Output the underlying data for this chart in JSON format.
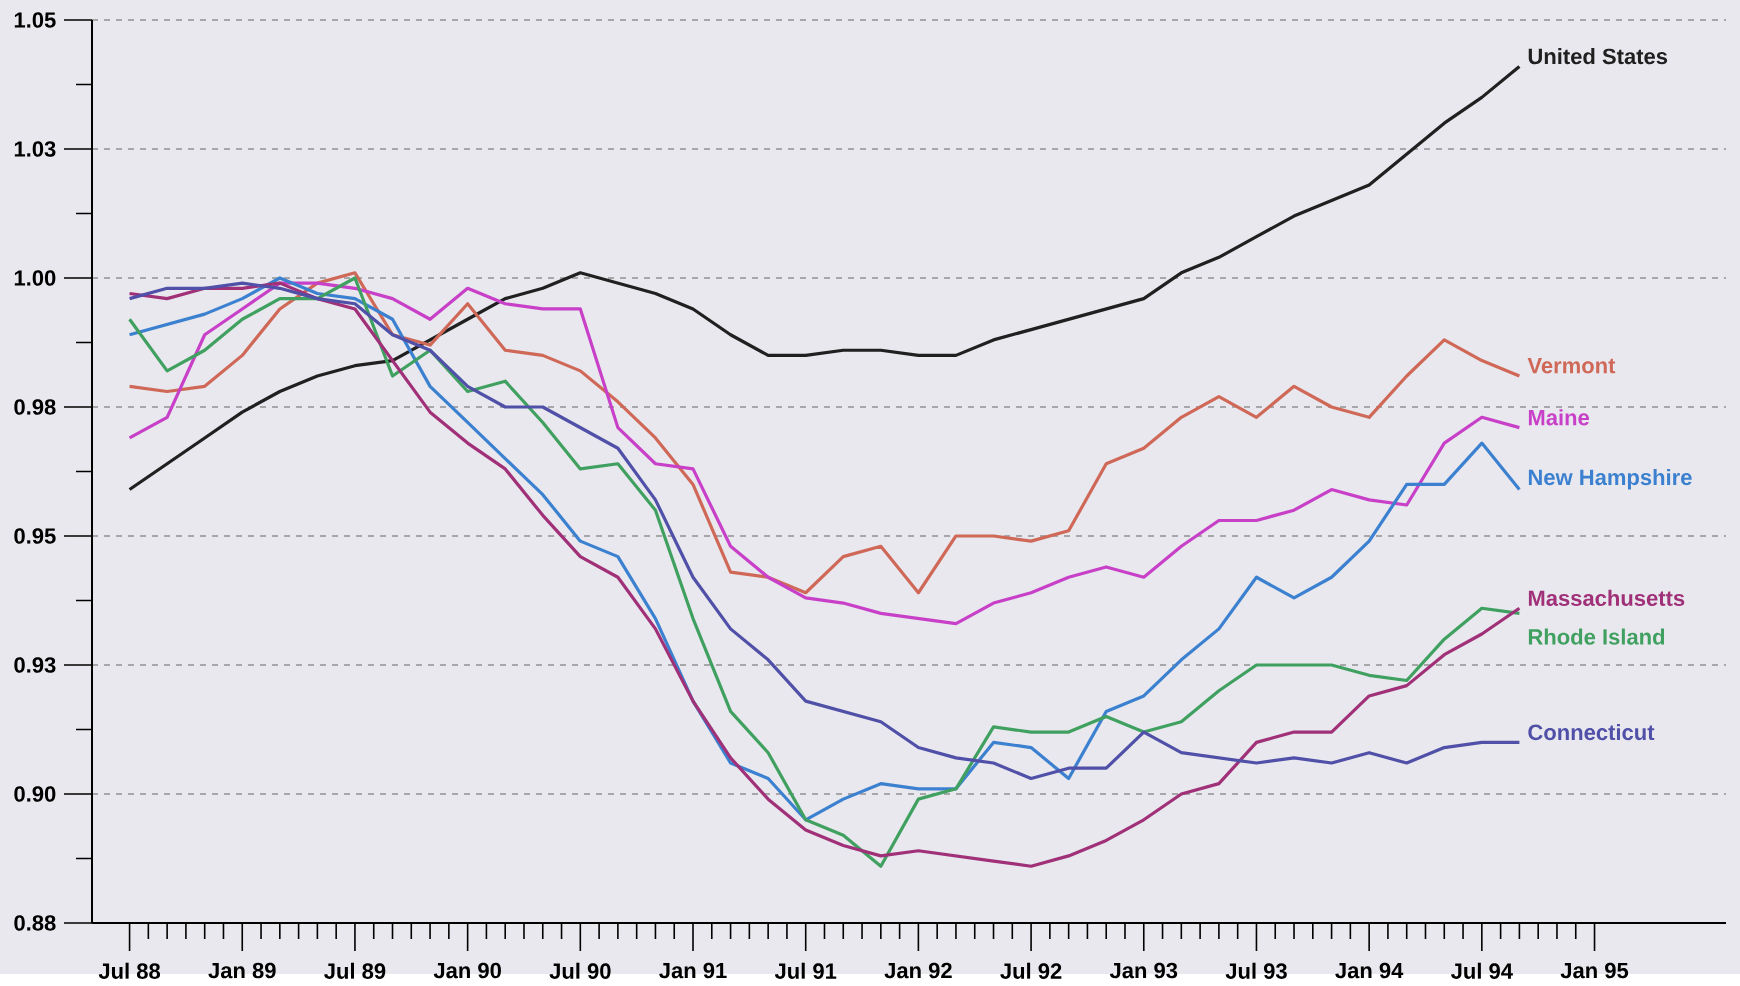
{
  "chart_data": {
    "type": "line",
    "x": [
      "1988-07",
      "1988-09",
      "1988-11",
      "1989-01",
      "1989-03",
      "1989-05",
      "1989-07",
      "1989-09",
      "1989-11",
      "1990-01",
      "1990-03",
      "1990-05",
      "1990-07",
      "1990-09",
      "1990-11",
      "1991-01",
      "1991-03",
      "1991-05",
      "1991-07",
      "1991-09",
      "1991-11",
      "1992-01",
      "1992-03",
      "1992-05",
      "1992-07",
      "1992-09",
      "1992-11",
      "1993-01",
      "1993-03",
      "1993-05",
      "1993-07",
      "1993-09",
      "1993-11",
      "1994-01",
      "1994-03",
      "1994-05",
      "1994-07",
      "1994-09"
    ],
    "series": [
      {
        "name": "United States",
        "color": "#202020",
        "values": [
          0.959,
          0.964,
          0.969,
          0.974,
          0.978,
          0.981,
          0.983,
          0.984,
          0.988,
          0.992,
          0.996,
          0.998,
          1.001,
          0.999,
          0.997,
          0.994,
          0.989,
          0.985,
          0.985,
          0.986,
          0.986,
          0.985,
          0.985,
          0.988,
          0.99,
          0.992,
          0.994,
          0.996,
          1.001,
          1.004,
          1.008,
          1.012,
          1.015,
          1.018,
          1.024,
          1.03,
          1.035,
          1.041
        ]
      },
      {
        "name": "Vermont",
        "color": "#d06858",
        "values": [
          0.979,
          0.978,
          0.979,
          0.985,
          0.994,
          0.999,
          1.001,
          0.989,
          0.987,
          0.995,
          0.986,
          0.985,
          0.982,
          0.976,
          0.969,
          0.96,
          0.943,
          0.942,
          0.939,
          0.946,
          0.948,
          0.939,
          0.95,
          0.95,
          0.949,
          0.951,
          0.964,
          0.967,
          0.973,
          0.977,
          0.973,
          0.979,
          0.975,
          0.973,
          0.981,
          0.988,
          0.984,
          0.981
        ]
      },
      {
        "name": "Maine",
        "color": "#c840c8",
        "values": [
          0.969,
          0.973,
          0.989,
          0.994,
          0.999,
          0.999,
          0.998,
          0.996,
          0.992,
          0.998,
          0.995,
          0.994,
          0.994,
          0.971,
          0.964,
          0.963,
          0.948,
          0.942,
          0.938,
          0.937,
          0.935,
          0.934,
          0.933,
          0.937,
          0.939,
          0.942,
          0.944,
          0.942,
          0.948,
          0.953,
          0.953,
          0.955,
          0.959,
          0.957,
          0.956,
          0.968,
          0.973,
          0.971
        ]
      },
      {
        "name": "New Hampshire",
        "color": "#3c80d0",
        "values": [
          0.989,
          0.991,
          0.993,
          0.996,
          1.0,
          0.997,
          0.996,
          0.992,
          0.979,
          0.972,
          0.965,
          0.958,
          0.949,
          0.946,
          0.934,
          0.918,
          0.906,
          0.903,
          0.895,
          0.899,
          0.902,
          0.901,
          0.901,
          0.91,
          0.909,
          0.903,
          0.916,
          0.919,
          0.926,
          0.932,
          0.942,
          0.938,
          0.942,
          0.949,
          0.96,
          0.96,
          0.968,
          0.959
        ]
      },
      {
        "name": "Rhode Island",
        "color": "#40a060",
        "values": [
          0.992,
          0.982,
          0.986,
          0.992,
          0.996,
          0.996,
          1.0,
          0.981,
          0.986,
          0.978,
          0.98,
          0.972,
          0.963,
          0.964,
          0.955,
          0.934,
          0.916,
          0.908,
          0.895,
          0.892,
          0.886,
          0.899,
          0.901,
          0.913,
          0.912,
          0.912,
          0.915,
          0.912,
          0.914,
          0.92,
          0.925,
          0.925,
          0.925,
          0.923,
          0.922,
          0.93,
          0.936,
          0.935
        ]
      },
      {
        "name": "Massachusetts",
        "color": "#a03078",
        "values": [
          0.997,
          0.996,
          0.998,
          0.998,
          0.999,
          0.996,
          0.994,
          0.984,
          0.974,
          0.968,
          0.963,
          0.954,
          0.946,
          0.942,
          0.932,
          0.918,
          0.907,
          0.899,
          0.893,
          0.89,
          0.888,
          0.889,
          0.888,
          0.887,
          0.886,
          0.888,
          0.891,
          0.895,
          0.9,
          0.902,
          0.91,
          0.912,
          0.912,
          0.919,
          0.921,
          0.927,
          0.931,
          0.936
        ]
      },
      {
        "name": "Connecticut",
        "color": "#5050a8",
        "values": [
          0.996,
          0.998,
          0.998,
          0.999,
          0.998,
          0.996,
          0.995,
          0.989,
          0.986,
          0.979,
          0.975,
          0.975,
          0.971,
          0.967,
          0.957,
          0.942,
          0.932,
          0.926,
          0.918,
          0.916,
          0.914,
          0.909,
          0.907,
          0.906,
          0.903,
          0.905,
          0.905,
          0.912,
          0.908,
          0.907,
          0.906,
          0.907,
          0.906,
          0.908,
          0.906,
          0.909,
          0.91,
          0.91
        ]
      }
    ],
    "xlim": [
      "1988-05",
      "1995-08"
    ],
    "xticks": [
      {
        "value": "1988-07",
        "label": "Jul 88"
      },
      {
        "value": "1989-01",
        "label": "Jan 89"
      },
      {
        "value": "1989-07",
        "label": "Jul 89"
      },
      {
        "value": "1990-01",
        "label": "Jan 90"
      },
      {
        "value": "1990-07",
        "label": "Jul 90"
      },
      {
        "value": "1991-01",
        "label": "Jan 91"
      },
      {
        "value": "1991-07",
        "label": "Jul 91"
      },
      {
        "value": "1992-01",
        "label": "Jan 92"
      },
      {
        "value": "1992-07",
        "label": "Jul 92"
      },
      {
        "value": "1993-01",
        "label": "Jan 93"
      },
      {
        "value": "1993-07",
        "label": "Jul 93"
      },
      {
        "value": "1994-01",
        "label": "Jan 94"
      },
      {
        "value": "1994-07",
        "label": "Jul 94"
      },
      {
        "value": "1995-01",
        "label": "Jan 95"
      }
    ],
    "ylim": [
      0.875,
      1.05
    ],
    "yticks": [
      {
        "value": 0.875,
        "label": "0.88"
      },
      {
        "value": 0.9,
        "label": "0.90"
      },
      {
        "value": 0.925,
        "label": "0.93"
      },
      {
        "value": 0.95,
        "label": "0.95"
      },
      {
        "value": 0.975,
        "label": "0.98"
      },
      {
        "value": 1.0,
        "label": "1.00"
      },
      {
        "value": 1.025,
        "label": "1.03"
      },
      {
        "value": 1.05,
        "label": "1.05"
      }
    ],
    "grid": "y",
    "legend": false,
    "marker": "none",
    "line_style": "solid"
  }
}
